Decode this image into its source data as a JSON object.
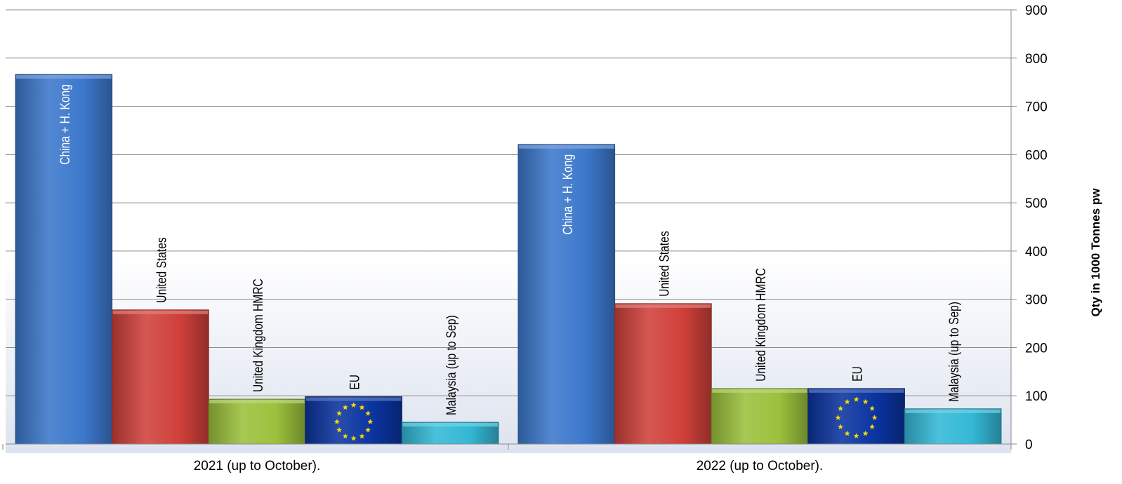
{
  "chart_data": {
    "type": "bar",
    "title": "",
    "xlabel": "",
    "ylabel": "Qty in 1000 Tonnes pw",
    "ylim": [
      0,
      900
    ],
    "y_ticks": [
      0,
      100,
      200,
      300,
      400,
      500,
      600,
      700,
      800,
      900
    ],
    "y_axis_side": "right",
    "grid": true,
    "legend": "none",
    "categories": [
      "2021 (up to October).",
      "2022 (up to October)."
    ],
    "series": [
      {
        "name": "China + H. Kong",
        "color": "#3c78cc",
        "values": [
          766,
          621
        ]
      },
      {
        "name": "United States",
        "color": "#d0403a",
        "values": [
          278,
          291
        ]
      },
      {
        "name": "United Kingdom HMRC",
        "color": "#9bc13c",
        "values": [
          93,
          115
        ]
      },
      {
        "name": "EU",
        "color": "#0a34a0",
        "values": [
          98,
          115
        ]
      },
      {
        "name": "Malaysia (up to Sep)",
        "color": "#33b8d6",
        "values": [
          45,
          73
        ]
      }
    ]
  }
}
